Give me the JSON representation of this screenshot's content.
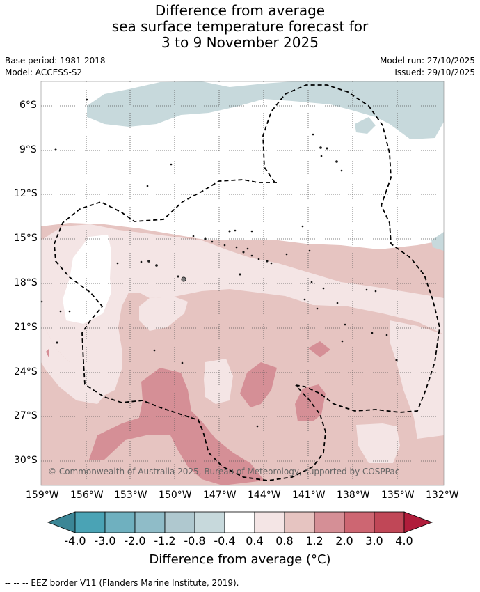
{
  "header": {
    "title_line1": "Difference from average",
    "title_line2": "sea surface temperature forecast for",
    "title_line3": "3 to 9 November 2025",
    "base_period": "Base period: 1981-2018",
    "model": "Model: ACCESS-S2",
    "model_run": "Model run: 27/10/2025",
    "issued": "Issued: 29/10/2025"
  },
  "map": {
    "copyright": "© Commonwealth of Australia 2025, Bureau of Meteorology, supported by COSPPac",
    "lat_labels": [
      "6°S",
      "9°S",
      "12°S",
      "15°S",
      "18°S",
      "21°S",
      "24°S",
      "27°S",
      "30°S"
    ],
    "lon_labels": [
      "159°W",
      "156°W",
      "153°W",
      "150°W",
      "147°W",
      "144°W",
      "141°W",
      "138°W",
      "135°W",
      "132°W"
    ]
  },
  "colorbar": {
    "labels": [
      "-4.0",
      "-3.0",
      "-2.0",
      "-1.2",
      "-0.8",
      "-0.4",
      "0.4",
      "0.8",
      "1.2",
      "2.0",
      "3.0",
      "4.0"
    ],
    "colors": [
      "#3b8696",
      "#4aa3b5",
      "#6fb0bf",
      "#8fbcc8",
      "#afc8cf",
      "#c7d9dc",
      "#ffffff",
      "#f4e5e5",
      "#e6c4c1",
      "#d58f96",
      "#cd6672",
      "#c04757",
      "#b01d3b"
    ],
    "title": "Difference from average (°C)"
  },
  "footer": {
    "legend_text": "--  --  -- EEZ border V11 (Flanders Marine Institute, 2019)."
  }
}
